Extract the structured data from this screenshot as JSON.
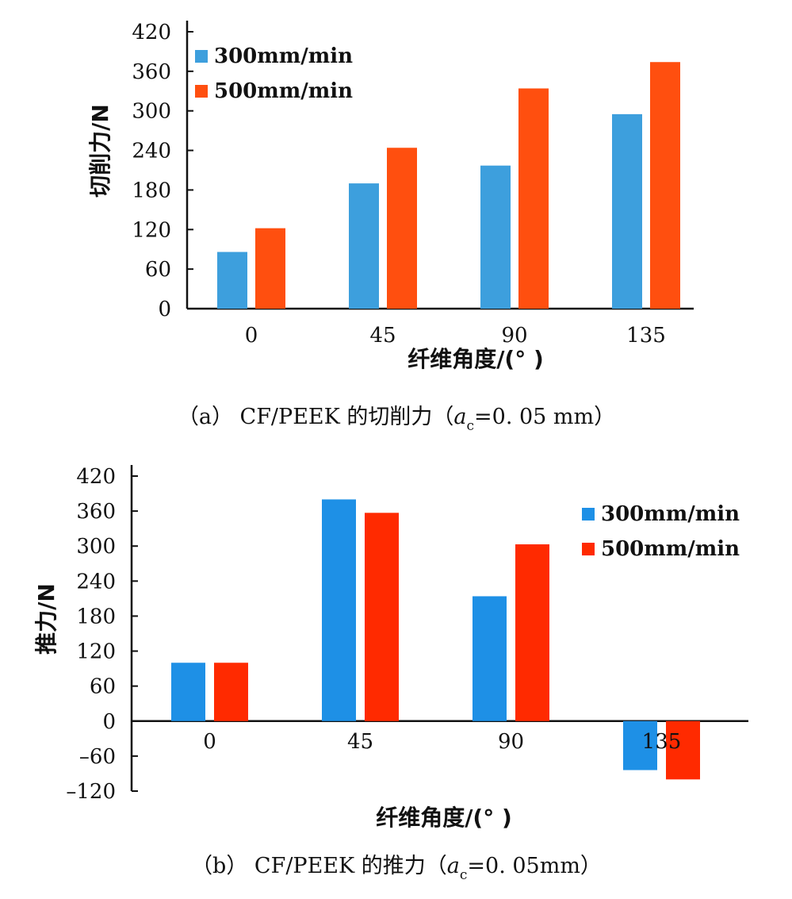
{
  "chart_data": [
    {
      "type": "bar",
      "categories": [
        "0",
        "45",
        "90",
        "135"
      ],
      "series": [
        {
          "name": "300mm/min",
          "color": "#3d9fdd",
          "values": [
            86,
            190,
            217,
            295
          ]
        },
        {
          "name": "500mm/min",
          "color": "#ff4f0f",
          "values": [
            122,
            244,
            334,
            374
          ]
        }
      ],
      "xlabel": "纤维角度/(°  )",
      "ylabel": "切削力/N",
      "ylim": [
        0,
        420
      ],
      "yticks": [
        0,
        60,
        120,
        180,
        240,
        300,
        360,
        420
      ],
      "legend_position": "top-left",
      "caption": {
        "prefix": "（a）  CF/PEEK 的切削力（",
        "var": "a",
        "sub": "c",
        "suffix": "=0. 05 mm）"
      }
    },
    {
      "type": "bar",
      "categories": [
        "0",
        "45",
        "90",
        "135"
      ],
      "series": [
        {
          "name": "300mm/min",
          "color": "#1e90e6",
          "values": [
            100,
            380,
            214,
            -84
          ]
        },
        {
          "name": "500mm/min",
          "color": "#ff2a00",
          "values": [
            100,
            357,
            303,
            -100
          ]
        }
      ],
      "xlabel": "纤维角度/(°  )",
      "ylabel": "推力/N",
      "ylim": [
        -120,
        420
      ],
      "yticks": [
        -120,
        -60,
        0,
        60,
        120,
        180,
        240,
        300,
        360,
        420
      ],
      "legend_position": "top-right",
      "caption": {
        "prefix": "（b）  CF/PEEK 的推力（",
        "var": "a",
        "sub": "c",
        "suffix": "=0. 05mm）"
      }
    }
  ]
}
